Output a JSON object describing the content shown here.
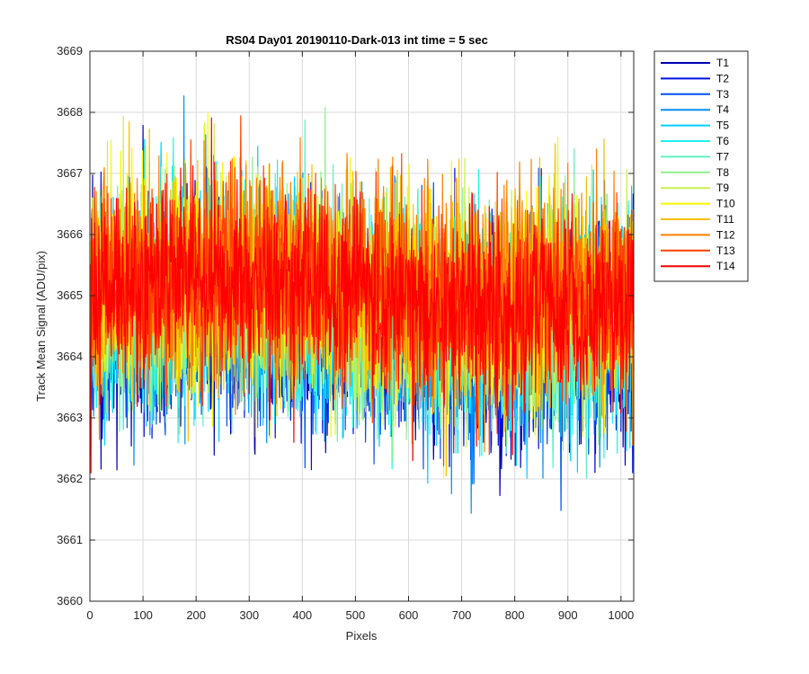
{
  "chart_data": {
    "type": "line",
    "title": "RS04 Day01 20190110-Dark-013 int time = 5 sec",
    "xlabel": "Pixels",
    "ylabel": "Track Mean Signal (ADU/pix)",
    "xlim": [
      0,
      1024
    ],
    "ylim": [
      3660,
      3669
    ],
    "x_ticks": [
      0,
      100,
      200,
      300,
      400,
      500,
      600,
      700,
      800,
      900,
      1000
    ],
    "y_ticks": [
      3660,
      3661,
      3662,
      3663,
      3664,
      3665,
      3666,
      3667,
      3668,
      3669
    ],
    "grid": true,
    "legend_position": "outside-top-right",
    "x_range": [
      1,
      1024
    ],
    "series": [
      {
        "name": "T1",
        "color": "#0000b4",
        "mean": 3664.4,
        "noise": 0.85
      },
      {
        "name": "T2",
        "color": "#0010e0",
        "mean": 3664.5,
        "noise": 0.85
      },
      {
        "name": "T3",
        "color": "#0050f0",
        "mean": 3664.5,
        "noise": 0.85
      },
      {
        "name": "T4",
        "color": "#0090f8",
        "mean": 3664.6,
        "noise": 0.85
      },
      {
        "name": "T5",
        "color": "#00d0ff",
        "mean": 3664.6,
        "noise": 0.85
      },
      {
        "name": "T6",
        "color": "#20f0f0",
        "mean": 3664.7,
        "noise": 0.85
      },
      {
        "name": "T7",
        "color": "#60f0c0",
        "mean": 3664.8,
        "noise": 0.85
      },
      {
        "name": "T8",
        "color": "#90f090",
        "mean": 3664.9,
        "noise": 0.85
      },
      {
        "name": "T9",
        "color": "#c8f050",
        "mean": 3665.0,
        "noise": 0.85
      },
      {
        "name": "T10",
        "color": "#f8f800",
        "mean": 3665.1,
        "noise": 0.85
      },
      {
        "name": "T11",
        "color": "#f8c000",
        "mean": 3665.1,
        "noise": 0.85
      },
      {
        "name": "T12",
        "color": "#ff8000",
        "mean": 3665.1,
        "noise": 0.85
      },
      {
        "name": "T13",
        "color": "#ff4000",
        "mean": 3665.1,
        "noise": 0.8
      },
      {
        "name": "T14",
        "color": "#ff0000",
        "mean": 3665.0,
        "noise": 0.8
      }
    ]
  }
}
